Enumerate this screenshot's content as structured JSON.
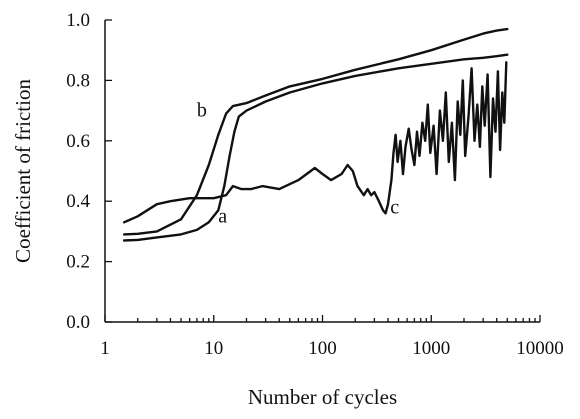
{
  "chart_data": {
    "type": "line",
    "title": "",
    "xlabel": "Number of cycles",
    "ylabel": "Coefficient of friction",
    "xscale": "log",
    "xlim": [
      1,
      10000
    ],
    "ylim": [
      0.0,
      1.0
    ],
    "xticks": [
      1,
      10,
      100,
      1000,
      10000
    ],
    "xtick_labels": [
      "1",
      "10",
      "100",
      "1000",
      "10000"
    ],
    "yticks": [
      0.0,
      0.2,
      0.4,
      0.6,
      0.8,
      1.0
    ],
    "ytick_labels": [
      "0.0",
      "0.2",
      "0.4",
      "0.6",
      "0.8",
      "1.0"
    ],
    "grid": false,
    "legend": "none (curves labeled directly)",
    "series": [
      {
        "label": "a",
        "label_at": {
          "x": 11,
          "y": 0.33
        },
        "points": [
          [
            1.5,
            0.27
          ],
          [
            2,
            0.272
          ],
          [
            3,
            0.28
          ],
          [
            5,
            0.29
          ],
          [
            7,
            0.305
          ],
          [
            9,
            0.33
          ],
          [
            11,
            0.37
          ],
          [
            12.5,
            0.45
          ],
          [
            14,
            0.55
          ],
          [
            15.5,
            0.63
          ],
          [
            17,
            0.68
          ],
          [
            20,
            0.7
          ],
          [
            30,
            0.73
          ],
          [
            50,
            0.76
          ],
          [
            100,
            0.79
          ],
          [
            200,
            0.815
          ],
          [
            500,
            0.84
          ],
          [
            1000,
            0.855
          ],
          [
            2000,
            0.87
          ],
          [
            3000,
            0.875
          ],
          [
            4000,
            0.88
          ],
          [
            5000,
            0.885
          ]
        ]
      },
      {
        "label": "b",
        "label_at": {
          "x": 7,
          "y": 0.68
        },
        "points": [
          [
            1.5,
            0.29
          ],
          [
            2,
            0.292
          ],
          [
            3,
            0.3
          ],
          [
            5,
            0.34
          ],
          [
            7,
            0.42
          ],
          [
            9,
            0.52
          ],
          [
            11,
            0.62
          ],
          [
            13,
            0.69
          ],
          [
            15,
            0.715
          ],
          [
            20,
            0.725
          ],
          [
            30,
            0.75
          ],
          [
            50,
            0.78
          ],
          [
            100,
            0.805
          ],
          [
            200,
            0.835
          ],
          [
            500,
            0.87
          ],
          [
            1000,
            0.9
          ],
          [
            2000,
            0.935
          ],
          [
            3000,
            0.955
          ],
          [
            4000,
            0.965
          ],
          [
            5000,
            0.97
          ]
        ]
      },
      {
        "label": "c",
        "label_at": {
          "x": 420,
          "y": 0.36
        },
        "points": [
          [
            1.5,
            0.33
          ],
          [
            2,
            0.35
          ],
          [
            3,
            0.39
          ],
          [
            4,
            0.4
          ],
          [
            6,
            0.41
          ],
          [
            10,
            0.41
          ],
          [
            13,
            0.42
          ],
          [
            15,
            0.45
          ],
          [
            18,
            0.44
          ],
          [
            22,
            0.44
          ],
          [
            28,
            0.45
          ],
          [
            40,
            0.44
          ],
          [
            60,
            0.47
          ],
          [
            85,
            0.51
          ],
          [
            100,
            0.49
          ],
          [
            120,
            0.47
          ],
          [
            150,
            0.49
          ],
          [
            170,
            0.52
          ],
          [
            190,
            0.5
          ],
          [
            210,
            0.45
          ],
          [
            240,
            0.42
          ],
          [
            260,
            0.44
          ],
          [
            280,
            0.42
          ],
          [
            300,
            0.43
          ],
          [
            330,
            0.4
          ],
          [
            360,
            0.37
          ],
          [
            380,
            0.36
          ],
          [
            400,
            0.39
          ],
          [
            430,
            0.47
          ],
          [
            450,
            0.56
          ],
          [
            470,
            0.62
          ],
          [
            490,
            0.53
          ],
          [
            520,
            0.6
          ],
          [
            550,
            0.49
          ],
          [
            580,
            0.58
          ],
          [
            620,
            0.64
          ],
          [
            660,
            0.57
          ],
          [
            700,
            0.52
          ],
          [
            740,
            0.63
          ],
          [
            780,
            0.55
          ],
          [
            830,
            0.66
          ],
          [
            880,
            0.6
          ],
          [
            930,
            0.72
          ],
          [
            980,
            0.56
          ],
          [
            1050,
            0.65
          ],
          [
            1120,
            0.49
          ],
          [
            1200,
            0.7
          ],
          [
            1280,
            0.6
          ],
          [
            1360,
            0.76
          ],
          [
            1450,
            0.53
          ],
          [
            1550,
            0.66
          ],
          [
            1650,
            0.47
          ],
          [
            1750,
            0.73
          ],
          [
            1850,
            0.62
          ],
          [
            1950,
            0.8
          ],
          [
            2050,
            0.55
          ],
          [
            2200,
            0.68
          ],
          [
            2350,
            0.84
          ],
          [
            2500,
            0.6
          ],
          [
            2650,
            0.72
          ],
          [
            2800,
            0.58
          ],
          [
            2950,
            0.78
          ],
          [
            3100,
            0.65
          ],
          [
            3300,
            0.82
          ],
          [
            3500,
            0.48
          ],
          [
            3700,
            0.74
          ],
          [
            3900,
            0.63
          ],
          [
            4100,
            0.83
          ],
          [
            4300,
            0.57
          ],
          [
            4500,
            0.76
          ],
          [
            4700,
            0.66
          ],
          [
            4900,
            0.86
          ]
        ]
      }
    ]
  }
}
